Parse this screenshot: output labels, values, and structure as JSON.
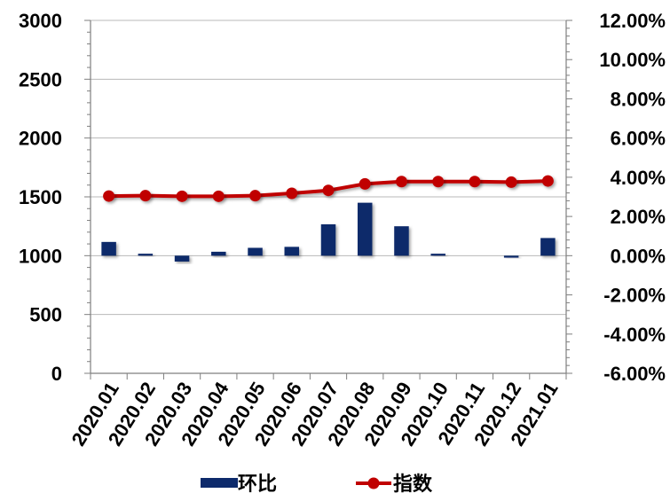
{
  "chart_data": {
    "type": "bar+line",
    "categories": [
      "2020.01",
      "2020.02",
      "2020.03",
      "2020.04",
      "2020.05",
      "2020.06",
      "2020.07",
      "2020.08",
      "2020.09",
      "2020.10",
      "2020.11",
      "2020.12",
      "2021.01"
    ],
    "series": [
      {
        "name": "环比",
        "type": "bar",
        "axis": "right",
        "color": "#0d2a6b",
        "values": [
          0.007,
          0.001,
          -0.003,
          0.002,
          0.004,
          0.0045,
          0.016,
          0.027,
          0.015,
          0.001,
          0.0,
          -0.001,
          0.009
        ]
      },
      {
        "name": "指数",
        "type": "line",
        "axis": "left",
        "color": "#c00000",
        "values": [
          1507,
          1510,
          1505,
          1505,
          1510,
          1530,
          1555,
          1610,
          1630,
          1630,
          1630,
          1625,
          1635
        ]
      }
    ],
    "y_left": {
      "range": [
        0,
        3000
      ],
      "ticks": [
        0,
        500,
        1000,
        1500,
        2000,
        2500,
        3000
      ],
      "tick_labels": [
        "0",
        "500",
        "1000",
        "1500",
        "2000",
        "2500",
        "3000"
      ]
    },
    "y_right": {
      "range": [
        -0.06,
        0.12
      ],
      "ticks": [
        -0.06,
        -0.04,
        -0.02,
        0.0,
        0.02,
        0.04,
        0.06,
        0.08,
        0.1,
        0.12
      ],
      "tick_labels": [
        "-6.00%",
        "-4.00%",
        "-2.00%",
        "0.00%",
        "2.00%",
        "4.00%",
        "6.00%",
        "8.00%",
        "10.00%",
        "12.00%"
      ]
    },
    "grid": true,
    "legend": "bottom",
    "title": "",
    "xlabel": "",
    "ylabel": ""
  }
}
